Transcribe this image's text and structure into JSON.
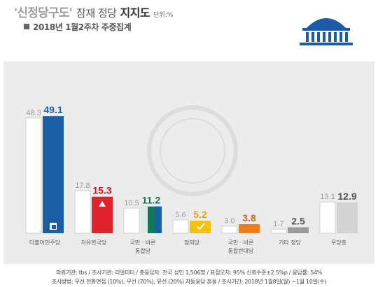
{
  "header": {
    "title_quote": "'신정당구도'",
    "title_rest": "잠재 정당",
    "title_emph": "지지도",
    "unit": "단위:%",
    "subtitle": "2018년 1월2주차 주중집계"
  },
  "chart_data": {
    "type": "bar",
    "categories": [
      [
        "더불어민주당"
      ],
      [
        "자유한국당"
      ],
      [
        "국민 · 바른",
        "통합당"
      ],
      [
        "정의당"
      ],
      [
        "국민 · 바른",
        "통합반대당"
      ],
      [
        "기타 정당"
      ],
      [
        "무당층"
      ]
    ],
    "series": [
      {
        "values": [
          48.3,
          17.8,
          10.5,
          5.6,
          3.0,
          1.7,
          13.1
        ]
      },
      {
        "values": [
          49.1,
          15.3,
          11.2,
          5.2,
          3.8,
          2.5,
          12.9
        ]
      }
    ],
    "value_labels_prev": [
      "48.3",
      "17.8",
      "10.5",
      "5.6",
      "3.0",
      "1.7",
      "13.1"
    ],
    "value_labels_curr": [
      "49.1",
      "15.3",
      "11.2",
      "5.2",
      "3.8",
      "2.5",
      "12.9"
    ],
    "ylim": [
      0,
      55
    ],
    "grid": false,
    "colors": {
      "prev_bar": "#ffffff",
      "prev_border": "#d0d0d0",
      "prev_label": "#9a9a9a",
      "curr_bars": [
        "#1a5fa6",
        "#e0222d",
        "#0e7a5b",
        "#f3c300",
        "#ef7d1a",
        "#9a9a9a",
        "#d3d3d3"
      ],
      "curr_labels": [
        "#1a5fa6",
        "#c4141f",
        "#0e7a5b",
        "#e0a800",
        "#d06a10",
        "#555555",
        "#555555"
      ],
      "panel": "#ececec",
      "watermark": "#dcdcdc",
      "accent": "#1d5aa8"
    }
  },
  "footer": {
    "line1": "의뢰기관: tbs / 조사기관: 리얼미터 / 총응답자: 전국 성인 1,506명 / 표집오차: 95% 신뢰수준±2.5%p / 응답률: 54%",
    "line2": "조사방법: 무선 전화면접 (10%), 무선 (70%), 유선 (20%) 자동응답 혼용 / 조사기간: 2018년 1월8일(월) ~1월 10일(수)"
  }
}
